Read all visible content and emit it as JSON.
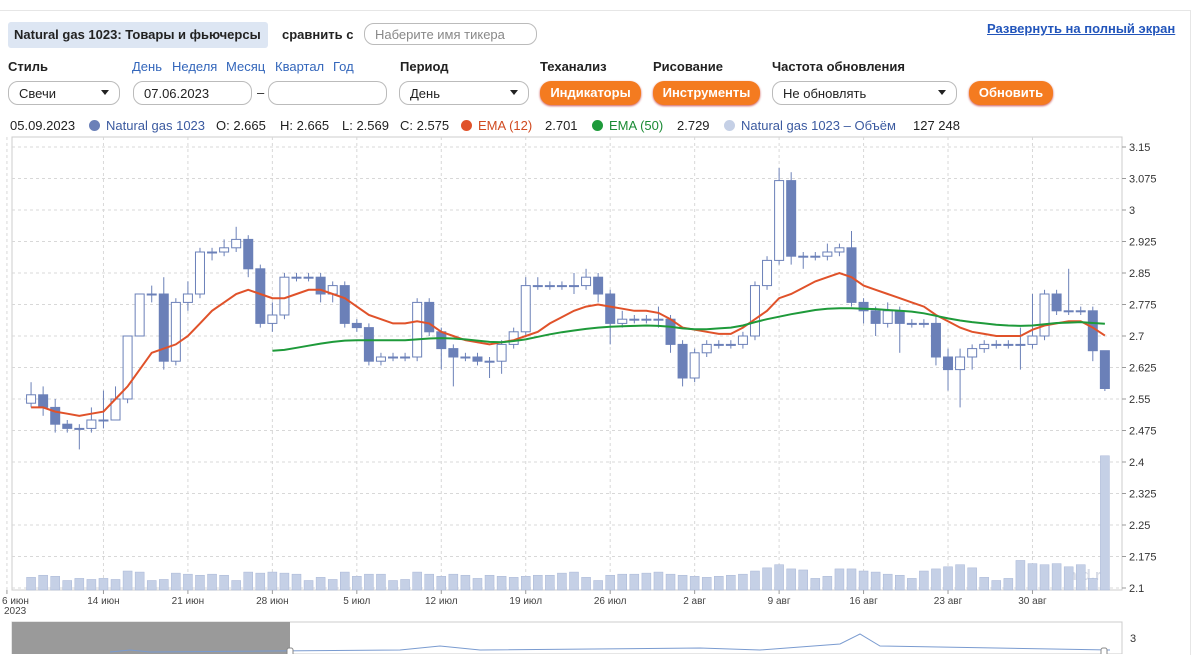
{
  "header": {
    "title": "Natural gas 1023: Товары и фьючерсы",
    "compare_label": "сравнить с",
    "compare_placeholder": "Наберите имя тикера",
    "fullscreen_link": "Развернуть на полный экран"
  },
  "controls": {
    "style_label": "Стиль",
    "style_value": "Свечи",
    "periods": [
      "День",
      "Неделя",
      "Месяц",
      "Квартал",
      "Год"
    ],
    "date_from": "07.06.2023",
    "date_sep": "–",
    "period_label": "Период",
    "period_value": "День",
    "ta_label": "Теханализ",
    "ta_button": "Индикаторы",
    "draw_label": "Рисование",
    "draw_button": "Инструменты",
    "refresh_label": "Частота обновления",
    "refresh_value": "Не обновлять",
    "refresh_button": "Обновить"
  },
  "legend": {
    "date": "05.09.2023",
    "ohlc": [
      "O: 2.665",
      "H: 2.665",
      "L: 2.569",
      "C: 2.575"
    ],
    "last_values": [
      "2.701",
      "2.729",
      "127 248"
    ]
  },
  "navigator": {
    "tick": "3"
  },
  "chart_data": {
    "type": "candlestick",
    "x_year": "2023",
    "watermark": "mfd.ru",
    "grid": true,
    "categories": [
      "6 июн",
      null,
      null,
      null,
      null,
      null,
      null,
      null,
      "14 июн",
      null,
      null,
      null,
      null,
      null,
      null,
      "21 июн",
      null,
      null,
      null,
      null,
      null,
      null,
      "28 июн",
      null,
      null,
      null,
      null,
      null,
      null,
      "5 июл",
      null,
      null,
      null,
      null,
      null,
      null,
      "12 июл",
      null,
      null,
      null,
      null,
      null,
      null,
      "19 июл",
      null,
      null,
      null,
      null,
      null,
      null,
      "26 июл",
      null,
      null,
      null,
      null,
      null,
      null,
      "2 авг",
      null,
      null,
      null,
      null,
      null,
      null,
      "9 авг",
      null,
      null,
      null,
      null,
      null,
      null,
      "16 авг",
      null,
      null,
      null,
      null,
      null,
      null,
      "23 авг",
      null,
      null,
      null,
      null,
      null,
      null,
      "30 авг",
      null,
      null,
      null,
      null,
      null,
      null
    ],
    "ylim": [
      2.1,
      3.15
    ],
    "yticks": [
      3.15,
      3.075,
      3,
      2.925,
      2.85,
      2.775,
      2.7,
      2.625,
      2.55,
      2.475,
      2.4,
      2.325,
      2.25,
      2.175,
      2.1
    ],
    "y2lim": [
      0,
      420000
    ],
    "series": [
      {
        "name": "Natural gas 1023",
        "color": "#6b80b8",
        "open": [
          null,
          null,
          2.54,
          2.56,
          2.53,
          2.49,
          2.48,
          2.48,
          2.5,
          2.5,
          2.55,
          2.7,
          2.8,
          2.8,
          2.64,
          2.78,
          2.8,
          2.9,
          2.9,
          2.91,
          2.93,
          2.86,
          2.73,
          2.75,
          2.84,
          2.84,
          2.84,
          2.8,
          2.82,
          2.73,
          2.72,
          2.64,
          2.65,
          2.65,
          2.65,
          2.78,
          2.71,
          2.67,
          2.65,
          2.65,
          2.64,
          2.64,
          2.68,
          2.71,
          2.82,
          2.82,
          2.82,
          2.82,
          2.82,
          2.84,
          2.8,
          2.73,
          2.74,
          2.74,
          2.74,
          2.74,
          2.68,
          2.6,
          2.66,
          2.68,
          2.68,
          2.68,
          2.7,
          2.82,
          2.88,
          3.07,
          2.89,
          2.89,
          2.89,
          2.9,
          2.91,
          2.78,
          2.76,
          2.73,
          2.76,
          2.73,
          2.73,
          2.73,
          2.65,
          2.62,
          2.65,
          2.67,
          2.68,
          2.68,
          2.68,
          2.68,
          2.7,
          2.8,
          2.76,
          2.76,
          2.76,
          2.665
        ],
        "high": [
          null,
          null,
          2.59,
          2.58,
          2.55,
          2.5,
          2.49,
          2.53,
          2.57,
          2.58,
          2.7,
          2.8,
          2.82,
          2.84,
          2.79,
          2.83,
          2.91,
          2.91,
          2.93,
          2.96,
          2.94,
          2.87,
          2.78,
          2.85,
          2.85,
          2.85,
          2.85,
          2.83,
          2.83,
          2.74,
          2.73,
          2.66,
          2.66,
          2.66,
          2.79,
          2.79,
          2.72,
          2.68,
          2.66,
          2.66,
          2.65,
          2.69,
          2.72,
          2.84,
          2.84,
          2.83,
          2.83,
          2.85,
          2.86,
          2.85,
          2.81,
          2.76,
          2.75,
          2.75,
          2.77,
          2.75,
          2.69,
          2.67,
          2.69,
          2.69,
          2.69,
          2.71,
          2.83,
          2.89,
          3.1,
          3.09,
          2.9,
          2.9,
          2.92,
          2.92,
          2.95,
          2.79,
          2.77,
          2.78,
          2.77,
          2.74,
          2.74,
          2.75,
          2.67,
          2.67,
          2.68,
          2.69,
          2.69,
          2.69,
          2.72,
          2.8,
          2.81,
          2.81,
          2.86,
          2.77,
          2.77,
          2.665
        ],
        "low": [
          null,
          null,
          2.53,
          2.51,
          2.47,
          2.47,
          2.43,
          2.47,
          2.48,
          2.5,
          2.54,
          2.7,
          2.78,
          2.62,
          2.63,
          2.76,
          2.79,
          2.88,
          2.89,
          2.9,
          2.84,
          2.72,
          2.71,
          2.74,
          2.83,
          2.83,
          2.78,
          2.78,
          2.72,
          2.71,
          2.63,
          2.63,
          2.64,
          2.64,
          2.64,
          2.7,
          2.62,
          2.58,
          2.64,
          2.63,
          2.6,
          2.61,
          2.67,
          2.7,
          2.81,
          2.81,
          2.81,
          2.8,
          2.81,
          2.78,
          2.68,
          2.72,
          2.73,
          2.73,
          2.72,
          2.66,
          2.58,
          2.59,
          2.65,
          2.67,
          2.67,
          2.67,
          2.69,
          2.81,
          2.87,
          2.87,
          2.86,
          2.88,
          2.88,
          2.89,
          2.77,
          2.73,
          2.7,
          2.72,
          2.66,
          2.72,
          2.72,
          2.63,
          2.57,
          2.53,
          2.62,
          2.66,
          2.67,
          2.67,
          2.62,
          2.67,
          2.69,
          2.75,
          2.75,
          2.75,
          2.64,
          2.569
        ],
        "close": [
          null,
          null,
          2.56,
          2.53,
          2.49,
          2.48,
          2.48,
          2.5,
          2.5,
          2.55,
          2.7,
          2.8,
          2.8,
          2.64,
          2.78,
          2.8,
          2.9,
          2.9,
          2.91,
          2.93,
          2.86,
          2.73,
          2.75,
          2.84,
          2.84,
          2.84,
          2.8,
          2.82,
          2.73,
          2.72,
          2.64,
          2.65,
          2.65,
          2.65,
          2.78,
          2.71,
          2.67,
          2.65,
          2.65,
          2.64,
          2.64,
          2.68,
          2.71,
          2.82,
          2.82,
          2.82,
          2.82,
          2.82,
          2.84,
          2.8,
          2.73,
          2.74,
          2.74,
          2.74,
          2.74,
          2.68,
          2.6,
          2.66,
          2.68,
          2.68,
          2.68,
          2.7,
          2.82,
          2.88,
          3.07,
          2.89,
          2.89,
          2.89,
          2.9,
          2.91,
          2.78,
          2.76,
          2.73,
          2.76,
          2.73,
          2.73,
          2.73,
          2.65,
          2.62,
          2.65,
          2.67,
          2.68,
          2.68,
          2.68,
          2.68,
          2.7,
          2.8,
          2.76,
          2.76,
          2.76,
          2.665,
          2.575
        ]
      },
      {
        "name": "EMA (12)",
        "type": "line",
        "color": "#e0522a",
        "values": [
          null,
          null,
          2.53,
          2.53,
          2.52,
          2.515,
          2.51,
          2.515,
          2.52,
          2.55,
          2.58,
          2.62,
          2.66,
          2.67,
          2.68,
          2.7,
          2.73,
          2.76,
          2.78,
          2.8,
          2.81,
          2.8,
          2.79,
          2.79,
          2.8,
          2.81,
          2.81,
          2.8,
          2.79,
          2.77,
          2.75,
          2.74,
          2.73,
          2.73,
          2.735,
          2.73,
          2.71,
          2.7,
          2.69,
          2.685,
          2.68,
          2.685,
          2.69,
          2.7,
          2.71,
          2.73,
          2.745,
          2.76,
          2.77,
          2.775,
          2.77,
          2.765,
          2.76,
          2.76,
          2.755,
          2.74,
          2.72,
          2.715,
          2.71,
          2.705,
          2.705,
          2.72,
          2.74,
          2.76,
          2.79,
          2.8,
          2.815,
          2.83,
          2.84,
          2.85,
          2.84,
          2.82,
          2.81,
          2.8,
          2.79,
          2.78,
          2.77,
          2.75,
          2.735,
          2.72,
          2.71,
          2.705,
          2.7,
          2.7,
          2.7,
          2.715,
          2.725,
          2.73,
          2.735,
          2.735,
          2.72,
          2.701
        ]
      },
      {
        "name": "EMA (50)",
        "type": "line",
        "color": "#1e9a3a",
        "values": [
          null,
          null,
          null,
          null,
          null,
          null,
          null,
          null,
          null,
          null,
          null,
          null,
          null,
          null,
          null,
          null,
          null,
          null,
          null,
          null,
          null,
          null,
          2.665,
          2.667,
          2.672,
          2.677,
          2.682,
          2.686,
          2.689,
          2.69,
          2.69,
          2.69,
          2.69,
          2.69,
          2.692,
          2.694,
          2.695,
          2.694,
          2.692,
          2.689,
          2.686,
          2.685,
          2.688,
          2.692,
          2.698,
          2.704,
          2.709,
          2.713,
          2.717,
          2.72,
          2.722,
          2.723,
          2.724,
          2.725,
          2.724,
          2.722,
          2.718,
          2.716,
          2.716,
          2.718,
          2.72,
          2.725,
          2.733,
          2.74,
          2.746,
          2.752,
          2.757,
          2.762,
          2.765,
          2.766,
          2.766,
          2.765,
          2.764,
          2.762,
          2.76,
          2.758,
          2.754,
          2.748,
          2.742,
          2.737,
          2.733,
          2.73,
          2.727,
          2.725,
          2.724,
          2.725,
          2.728,
          2.731,
          2.732,
          2.733,
          2.731,
          2.729
        ]
      },
      {
        "name": "Natural gas 1023 – Объём",
        "type": "bar",
        "axis": "y2",
        "color": "#c5d0e6",
        "values": [
          null,
          null,
          12000,
          14000,
          13000,
          9000,
          11000,
          10000,
          11000,
          10000,
          18000,
          17000,
          9000,
          10000,
          16000,
          15000,
          14000,
          15000,
          14000,
          9000,
          17000,
          16000,
          17000,
          16000,
          15000,
          9000,
          12000,
          10000,
          17000,
          13000,
          15000,
          15000,
          9000,
          10000,
          17000,
          15000,
          13000,
          15000,
          14000,
          11000,
          14000,
          13000,
          12000,
          13000,
          14000,
          14000,
          16000,
          17000,
          12000,
          9000,
          14000,
          15000,
          15000,
          16000,
          17000,
          15000,
          14000,
          13000,
          12000,
          13000,
          14000,
          15000,
          18000,
          21000,
          24000,
          20000,
          19000,
          11000,
          13000,
          20000,
          20000,
          18000,
          17000,
          15000,
          14000,
          11000,
          18000,
          20000,
          22000,
          24000,
          21000,
          12000,
          9000,
          11000,
          28000,
          25000,
          24000,
          25000,
          22000,
          24000,
          11000,
          127248
        ]
      }
    ]
  }
}
